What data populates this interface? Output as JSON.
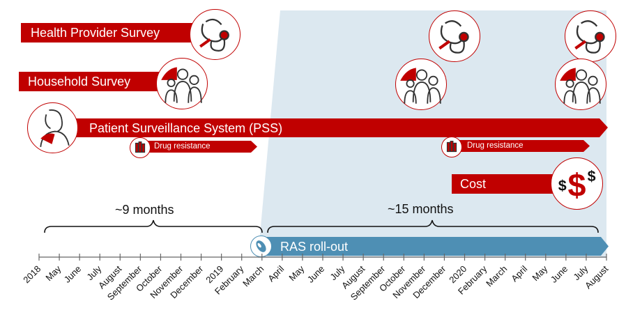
{
  "surveys": {
    "health_provider": "Health Provider Survey",
    "household": "Household Survey",
    "pss": "Patient Surveillance System (PSS)",
    "drug_resistance_1": "Drug resistance",
    "drug_resistance_2": "Drug resistance",
    "cost": "Cost",
    "ras": "RAS roll-out"
  },
  "durations": {
    "before": "~9 months",
    "after": "~15 months"
  },
  "timeline": {
    "months": [
      "2018",
      "May",
      "June",
      "July",
      "August",
      "September",
      "October",
      "November",
      "December",
      "2019",
      "February",
      "March",
      "April",
      "May",
      "June",
      "July",
      "August",
      "September",
      "October",
      "November",
      "December",
      "2020",
      "February",
      "March",
      "April",
      "May",
      "June",
      "July",
      "August"
    ]
  },
  "colors": {
    "red": "#c00000",
    "blue": "#4e8fb4",
    "shade": "#dce8f0"
  },
  "icons": {
    "stethoscope": "stethoscope-icon",
    "family": "family-icon",
    "patient": "patient-icon",
    "vials": "vials-icon",
    "dollar": "dollar-icon",
    "ras": "ras-icon"
  }
}
